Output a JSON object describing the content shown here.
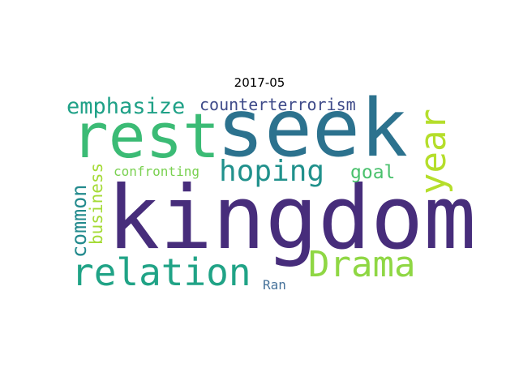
{
  "title": "2017-05",
  "words": [
    {
      "key": "kingdom",
      "text": "kingdom",
      "color": "#472d7b"
    },
    {
      "key": "seek",
      "text": "seek",
      "color": "#2c728e"
    },
    {
      "key": "rest",
      "text": "rest",
      "color": "#3bbb75"
    },
    {
      "key": "relation",
      "text": "relation",
      "color": "#20a386"
    },
    {
      "key": "drama",
      "text": "Drama",
      "color": "#8fd744"
    },
    {
      "key": "hoping",
      "text": "hoping",
      "color": "#21918c"
    },
    {
      "key": "year",
      "text": "year",
      "color": "#b5de2b"
    },
    {
      "key": "emphasize",
      "text": "emphasize",
      "color": "#1fa187"
    },
    {
      "key": "common",
      "text": "common",
      "color": "#238a8d"
    },
    {
      "key": "business",
      "text": "business",
      "color": "#a5db36"
    },
    {
      "key": "goal",
      "text": "goal",
      "color": "#4ac16d"
    },
    {
      "key": "counter",
      "text": "counterterrorism",
      "color": "#3e4a89"
    },
    {
      "key": "confront",
      "text": "confronting",
      "color": "#7ad151"
    },
    {
      "key": "ran",
      "text": "Ran",
      "color": "#46729a"
    }
  ]
}
